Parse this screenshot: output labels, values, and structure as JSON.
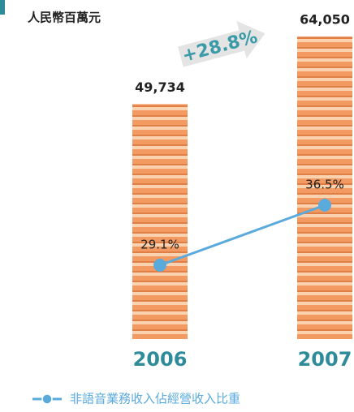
{
  "chart_data": {
    "type": "bar",
    "title": "人民幣百萬元",
    "categories": [
      "2006",
      "2007"
    ],
    "values": [
      49734,
      64050
    ],
    "value_labels": [
      "49,734",
      "64,050"
    ],
    "color": "#f39a62",
    "line_series": {
      "name": "非語音業務收入佔經營收入比重",
      "color": "#5aaadc",
      "values": [
        29.1,
        36.5
      ],
      "value_labels": [
        "29.1%",
        "36.5%"
      ]
    },
    "annotation": "+28.8%"
  }
}
